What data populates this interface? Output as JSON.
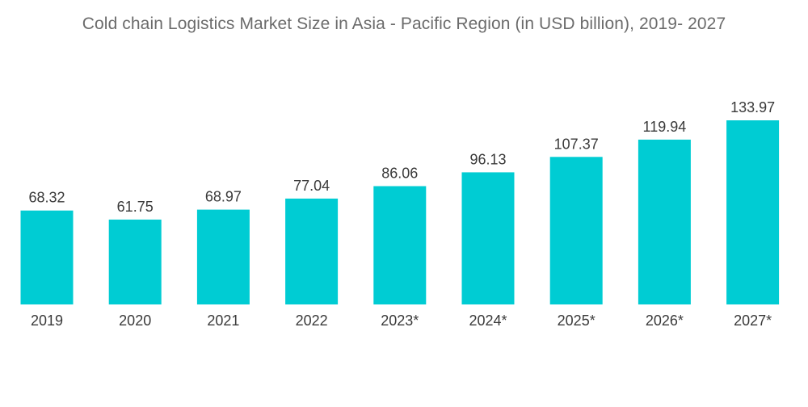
{
  "chart_data": {
    "type": "bar",
    "title": "Cold chain Logistics Market Size in Asia - Pacific Region (in USD billion), 2019- 2027",
    "categories": [
      "2019",
      "2020",
      "2021",
      "2022",
      "2023*",
      "2024*",
      "2025*",
      "2026*",
      "2027*"
    ],
    "values": [
      68.32,
      61.75,
      68.97,
      77.04,
      86.06,
      96.13,
      107.37,
      119.94,
      133.97
    ],
    "value_labels": [
      "68.32",
      "61.75",
      "68.97",
      "77.04",
      "86.06",
      "96.13",
      "107.37",
      "119.94",
      "133.97"
    ],
    "xlabel": "",
    "ylabel": "",
    "ylim": [
      0,
      133.97
    ],
    "grid": false,
    "bar_color": "#00CCD3"
  }
}
